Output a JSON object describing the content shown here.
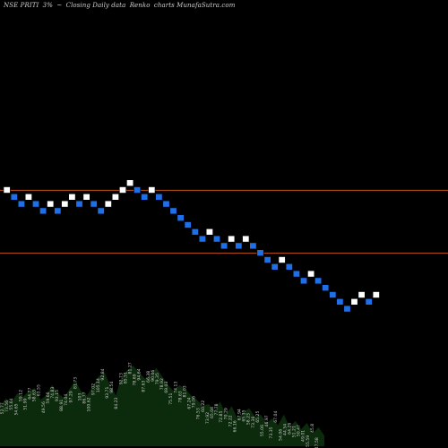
{
  "header": {
    "symbol": "NSE PRITI",
    "change": "3%",
    "arrow": "~",
    "description": "Closing Daily data",
    "chart_kind": "Renko",
    "source": "charts MunafaSutra.com"
  },
  "colors": {
    "background": "#000000",
    "up_brick": "#ffffff",
    "down_brick": "#1e6fe8",
    "brick_outline": "#000000",
    "level_line": "#c0541a",
    "volume_fill": "#0c2a0c",
    "volume_label": "#c8c8c8"
  },
  "chart_data": {
    "type": "renko",
    "brick_size": 1,
    "brick_index": [
      0,
      1,
      2,
      3,
      4,
      5,
      6,
      7,
      8,
      9,
      10,
      11,
      12,
      13,
      14,
      15,
      16,
      17,
      18,
      19,
      20,
      21,
      22,
      23,
      24,
      25,
      26,
      27,
      28,
      29,
      30,
      31,
      32,
      33,
      34,
      35,
      36,
      37,
      38,
      39,
      40,
      41,
      42,
      43,
      44,
      45,
      46,
      47,
      48,
      49,
      50,
      51
    ],
    "level": [
      0,
      -1,
      -2,
      -1,
      -2,
      -3,
      -2,
      -3,
      -2,
      -1,
      -2,
      -1,
      -2,
      -3,
      -2,
      -1,
      0,
      1,
      0,
      -1,
      0,
      -1,
      -2,
      -3,
      -4,
      -5,
      -6,
      -7,
      -6,
      -7,
      -8,
      -7,
      -8,
      -7,
      -8,
      -9,
      -10,
      -11,
      -10,
      -11,
      -12,
      -13,
      -12,
      -13,
      -14,
      -15,
      -16,
      -17,
      -16,
      -15,
      -16,
      -15
    ],
    "direction": [
      "up",
      "down",
      "down",
      "up",
      "down",
      "down",
      "up",
      "down",
      "up",
      "up",
      "down",
      "up",
      "down",
      "down",
      "up",
      "up",
      "up",
      "up",
      "down",
      "down",
      "up",
      "down",
      "down",
      "down",
      "down",
      "down",
      "down",
      "down",
      "up",
      "down",
      "down",
      "up",
      "down",
      "up",
      "down",
      "down",
      "down",
      "down",
      "up",
      "down",
      "down",
      "down",
      "up",
      "down",
      "down",
      "down",
      "down",
      "down",
      "up",
      "up",
      "down",
      "up"
    ],
    "reference_levels": [
      -0.5,
      -9.5
    ],
    "volume_profile": [
      38,
      45,
      42,
      50,
      47,
      52,
      55,
      44,
      48,
      58,
      50,
      46,
      54,
      62,
      52,
      48,
      56,
      66,
      70,
      58,
      48,
      66,
      72,
      76,
      70,
      64,
      68,
      74,
      66,
      58,
      52,
      58,
      54,
      48,
      44,
      38,
      40,
      34,
      42,
      30,
      38,
      26,
      32,
      36,
      28,
      30,
      22,
      26,
      20,
      30,
      18,
      24,
      16,
      22,
      12,
      18,
      10
    ],
    "volume_labels": [
      "52.77",
      "73.56",
      "55.64",
      "54.65",
      "59.12",
      "51.99",
      "64.77",
      "58.63",
      "63.55",
      "49.56",
      "59.66",
      "74.83",
      "93.15",
      "88.91",
      "74.04",
      "97.29",
      "81.73",
      "103",
      "86.77",
      "100.62",
      "97.02",
      "105.14",
      "92.84",
      "93.71",
      "98.54",
      "84.23",
      "92.73",
      "85.51",
      "81.27",
      "78.69",
      "94.64",
      "87.63",
      "66.38",
      "90.06",
      "79.35",
      "78.92",
      "69.03",
      "75.51",
      "74.13",
      "78.63",
      "81.03",
      "67.24",
      "79.06",
      "76.53",
      "60.22",
      "73.92",
      "65.04",
      "77.78",
      "72.85",
      "70.29",
      "72.22",
      "66.16",
      "67.94",
      "65.35",
      "58.23",
      "73.36",
      "65.25",
      "55.06",
      "46.97",
      "73.35",
      "67.04",
      "54.06",
      "44.54",
      "64.26",
      "51.21",
      "50.47",
      "49.01",
      "55.59",
      "45.8",
      "47.58"
    ]
  }
}
